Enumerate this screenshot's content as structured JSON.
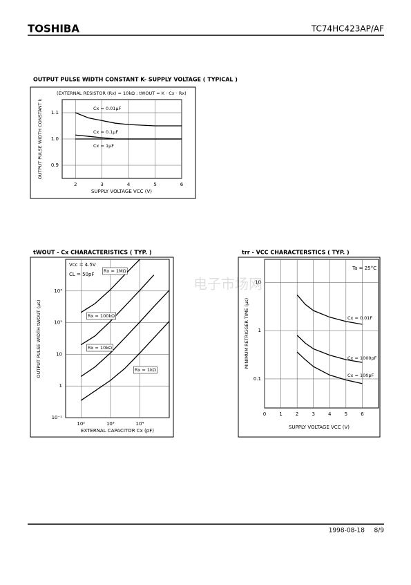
{
  "header": {
    "brand": "TOSHIBA",
    "part": "TC74HC423AP/AF"
  },
  "watermark": "电子市场网",
  "chart_data": [
    {
      "type": "line",
      "title": "OUTPUT PULSE WIDTH CONSTANT K- SUPPLY VOLTAGE ( TYPICAL )",
      "subtitle": "(EXTERNAL RESISTOR (Rx) = 10kΩ : tWOUT = K · Cx · Rx)",
      "x_label": "SUPPLY VOLTAGE VCC (V)",
      "y_label": "OUTPUT PULSE WIDTH CONSTANT k",
      "x": [
        2,
        2.5,
        3,
        3.5,
        4,
        5,
        6
      ],
      "series": [
        {
          "name": "Cx = 0.01μF",
          "color": "#000000",
          "values": [
            1.1,
            1.08,
            1.07,
            1.06,
            1.055,
            1.05,
            1.05
          ]
        },
        {
          "name": "Cx = 0.1μF",
          "color": "#000000",
          "values": [
            1.015,
            1.01,
            1.005,
            1.0,
            1.0,
            1.0,
            1.0
          ]
        },
        {
          "name": "Cx = 1μF",
          "color": "#000000",
          "values": [
            1.0,
            1.0,
            1.0,
            1.0,
            1.0,
            1.0,
            1.0
          ]
        }
      ],
      "xlim": [
        1.5,
        6
      ],
      "xticks": [
        2,
        3,
        4,
        5,
        6
      ],
      "ylim": [
        0.85,
        1.15
      ],
      "yticks": [
        0.9,
        {
          "value": 1.0,
          "label": "1.0"
        },
        1.1
      ],
      "grid": true,
      "log_x": false,
      "log_y": false
    },
    {
      "type": "line",
      "title": "tWOUT - Cx CHARACTERISTICS ( TYP. )",
      "annotations": [
        "Vcc = 4.5V",
        "CL = 50pF"
      ],
      "x_label": "EXTERNAL CAPACITOR Cx (pF)",
      "y_label": "OUTPUT PULSE WIDTH tWOUT (μs)",
      "series": [
        {
          "name": "Rx = 1MΩ",
          "color": "#000000",
          "x": [
            100,
            300,
            1000,
            3000,
            10000
          ],
          "values": [
            210,
            400,
            1100,
            3200,
            10000
          ]
        },
        {
          "name": "Rx = 100kΩ",
          "color": "#000000",
          "x": [
            100,
            300,
            1000,
            3000,
            10000,
            30000
          ],
          "values": [
            20,
            38,
            110,
            320,
            1050,
            3200
          ]
        },
        {
          "name": "Rx = 10kΩ",
          "color": "#000000",
          "x": [
            100,
            300,
            1000,
            3000,
            10000,
            30000,
            100000
          ],
          "values": [
            2,
            4,
            11,
            32,
            105,
            320,
            1050
          ]
        },
        {
          "name": "Rx = 1kΩ",
          "color": "#000000",
          "x": [
            100,
            300,
            1000,
            3000,
            10000,
            100000
          ],
          "values": [
            0.35,
            0.7,
            1.5,
            3.5,
            11,
            110
          ]
        }
      ],
      "xlim": [
        30,
        100000
      ],
      "xticks": [
        {
          "value": 100,
          "label": "10²"
        },
        {
          "value": 1000,
          "label": "10³"
        },
        {
          "value": 10000,
          "label": "10⁴"
        }
      ],
      "ylim": [
        0.1,
        10000
      ],
      "yticks": [
        {
          "value": 0.1,
          "label": "10⁻¹"
        },
        1,
        10,
        {
          "value": 100,
          "label": "10²"
        },
        {
          "value": 1000,
          "label": "10³"
        }
      ],
      "grid": true,
      "log_x": true,
      "log_y": true
    },
    {
      "type": "line",
      "title": "trr - VCC CHARACTERSTICS ( TYP. )",
      "annotations": [
        "Ta = 25°C"
      ],
      "x_label": "SUPPLY VOLTAGE VCC (V)",
      "y_label": "MINIMUM RETRIGGER TIME (μs)",
      "x": [
        2,
        2.5,
        3,
        4,
        5,
        6
      ],
      "series": [
        {
          "name": "Cx = 0.01F",
          "color": "#000000",
          "values": [
            5.5,
            3.5,
            2.6,
            1.9,
            1.55,
            1.35
          ]
        },
        {
          "name": "Cx = 1000pF",
          "color": "#000000",
          "values": [
            0.8,
            0.55,
            0.42,
            0.31,
            0.25,
            0.22
          ]
        },
        {
          "name": "Cx = 100pF",
          "color": "#000000",
          "values": [
            0.36,
            0.25,
            0.18,
            0.12,
            0.095,
            0.08
          ]
        }
      ],
      "xlim": [
        0,
        7
      ],
      "xticks": [
        0,
        1,
        2,
        3,
        4,
        5,
        6
      ],
      "ylim": [
        0.025,
        30
      ],
      "yticks": [
        0.1,
        1,
        10
      ],
      "grid": true,
      "log_x": false,
      "log_y": true
    }
  ],
  "footer": {
    "date": "1998-08-18",
    "page": "8/9"
  }
}
